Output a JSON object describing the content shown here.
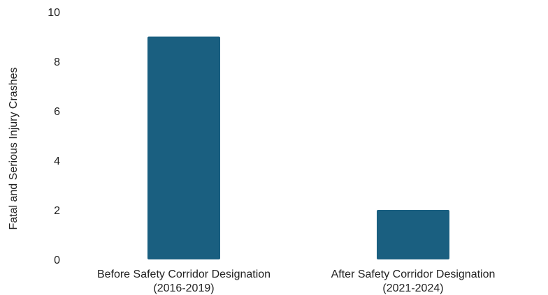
{
  "chart_data": {
    "type": "bar",
    "title": "",
    "xlabel": "",
    "ylabel": "Fatal and Serious Injury Crashes",
    "categories": [
      [
        "Before Safety Corridor Designation",
        "(2016-2019)"
      ],
      [
        "After Safety Corridor Designation",
        "(2021-2024)"
      ]
    ],
    "values": [
      9,
      2
    ],
    "ylim": [
      0,
      10
    ],
    "yticks": [
      0,
      2,
      4,
      6,
      8,
      10
    ],
    "grid": false,
    "legend": "none",
    "colors": {
      "bar": "#1a5f80"
    }
  }
}
